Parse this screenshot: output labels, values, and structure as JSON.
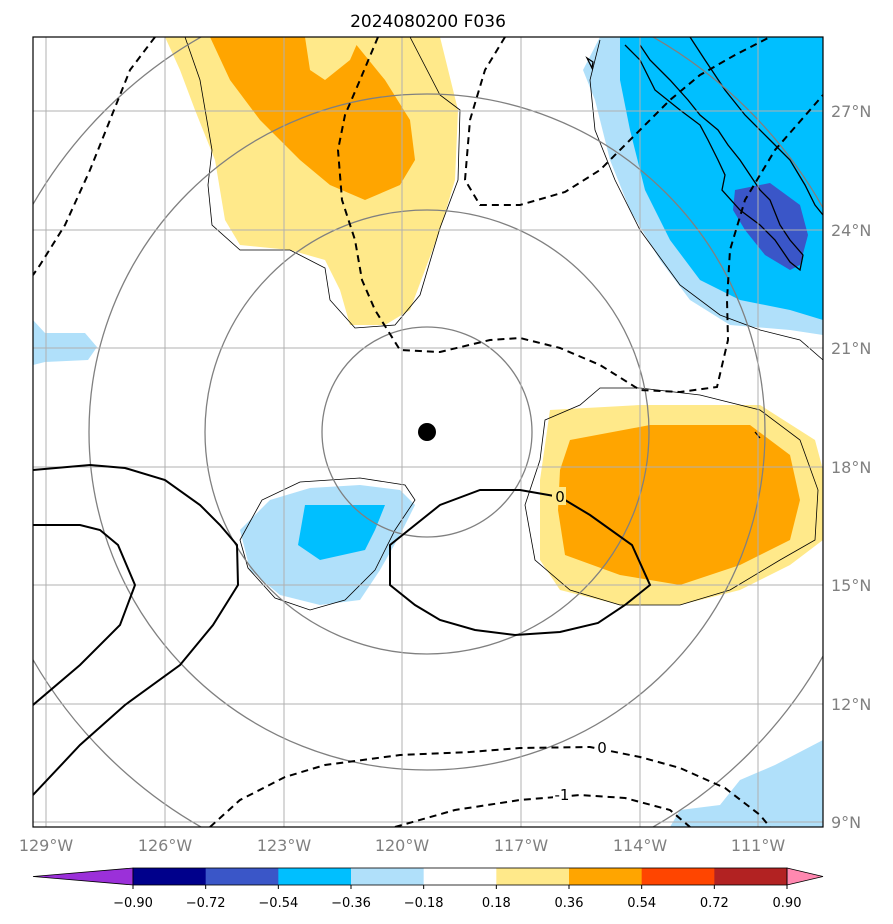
{
  "title": "2024080200 F036",
  "map": {
    "lon_ticks": [
      "129°W",
      "126°W",
      "123°W",
      "120°W",
      "117°W",
      "114°W",
      "111°W"
    ],
    "lat_ticks": [
      "27°N",
      "24°N",
      "21°N",
      "18°N",
      "15°N",
      "12°N",
      "9°N"
    ],
    "grid": true,
    "center_marker": "storm-center-dot",
    "contour_labels": [
      "0",
      "0",
      "-1"
    ]
  },
  "colorbar": {
    "ticks": [
      "−0.90",
      "−0.72",
      "−0.54",
      "−0.36",
      "−0.18",
      "0.18",
      "0.36",
      "0.54",
      "0.72",
      "0.90"
    ],
    "colors": [
      "#9b30d9",
      "#00008b",
      "#3a56c8",
      "#00bfff",
      "#b0e0fa",
      "#ffffff",
      "#ffe98a",
      "#ffa500",
      "#ff4500",
      "#b22222",
      "#ff88b0"
    ],
    "extend": "both"
  }
}
